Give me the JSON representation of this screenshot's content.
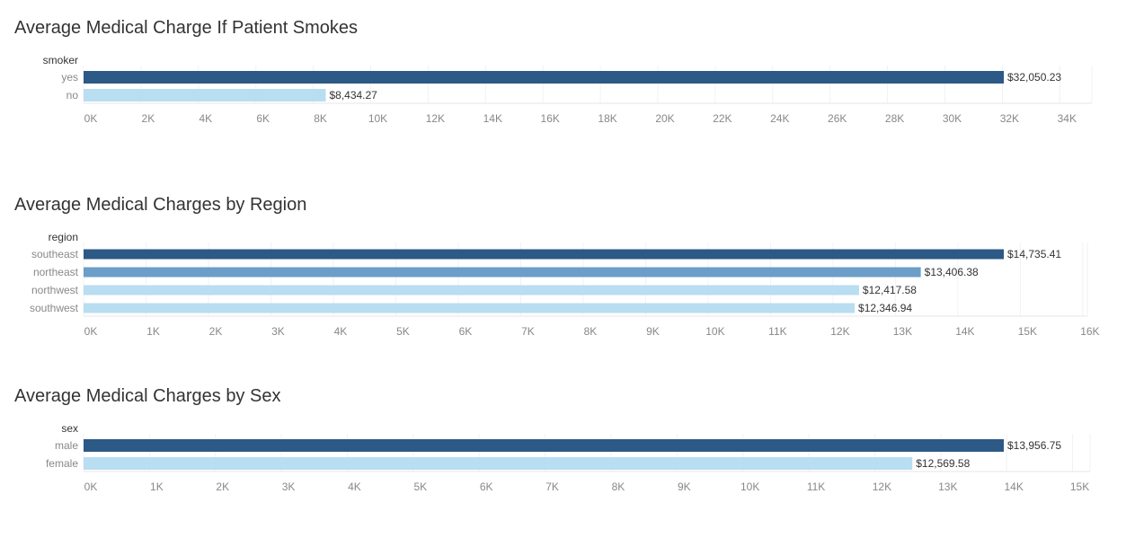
{
  "charts": [
    {
      "title": "Average Medical Charge If Patient Smokes",
      "dimension_label": "smoker"
    },
    {
      "title": "Average Medical Charges by Region",
      "dimension_label": "region"
    },
    {
      "title": "Average Medical Charges by Sex",
      "dimension_label": "sex"
    }
  ],
  "chart_data": [
    {
      "type": "bar",
      "orientation": "horizontal",
      "title": "Average Medical Charge If Patient Smokes",
      "ylabel": "smoker",
      "categories": [
        "yes",
        "no"
      ],
      "values": [
        32050.23,
        8434.27
      ],
      "value_labels": [
        "$32,050.23",
        "$8,434.27"
      ],
      "colors": [
        "#2c5985",
        "#b9ddf1"
      ],
      "xlim": [
        0,
        36000
      ],
      "ticks": [
        0,
        2000,
        4000,
        6000,
        8000,
        10000,
        12000,
        14000,
        16000,
        18000,
        20000,
        22000,
        24000,
        26000,
        28000,
        30000,
        32000,
        34000
      ],
      "tick_labels": [
        "0K",
        "2K",
        "4K",
        "6K",
        "8K",
        "10K",
        "12K",
        "14K",
        "16K",
        "18K",
        "20K",
        "22K",
        "24K",
        "26K",
        "28K",
        "30K",
        "32K",
        "34K"
      ],
      "grid": true
    },
    {
      "type": "bar",
      "orientation": "horizontal",
      "title": "Average Medical Charges by Region",
      "ylabel": "region",
      "categories": [
        "southeast",
        "northeast",
        "northwest",
        "southwest"
      ],
      "values": [
        14735.41,
        13406.38,
        12417.58,
        12346.94
      ],
      "value_labels": [
        "$14,735.41",
        "$13,406.38",
        "$12,417.58",
        "$12,346.94"
      ],
      "colors": [
        "#2c5985",
        "#6b9ec8",
        "#b9ddf1",
        "#b9ddf1"
      ],
      "xlim": [
        0,
        16700
      ],
      "ticks": [
        0,
        1000,
        2000,
        3000,
        4000,
        5000,
        6000,
        7000,
        8000,
        9000,
        10000,
        11000,
        12000,
        13000,
        14000,
        15000,
        16000
      ],
      "tick_labels": [
        "0K",
        "1K",
        "2K",
        "3K",
        "4K",
        "5K",
        "6K",
        "7K",
        "8K",
        "9K",
        "10K",
        "11K",
        "12K",
        "13K",
        "14K",
        "15K",
        "16K"
      ],
      "grid": true
    },
    {
      "type": "bar",
      "orientation": "horizontal",
      "title": "Average Medical Charges by Sex",
      "ylabel": "sex",
      "categories": [
        "male",
        "female"
      ],
      "values": [
        13956.75,
        12569.58
      ],
      "value_labels": [
        "$13,956.75",
        "$12,569.58"
      ],
      "colors": [
        "#2c5985",
        "#b9ddf1"
      ],
      "xlim": [
        0,
        15700
      ],
      "ticks": [
        0,
        1000,
        2000,
        3000,
        4000,
        5000,
        6000,
        7000,
        8000,
        9000,
        10000,
        11000,
        12000,
        13000,
        14000,
        15000
      ],
      "tick_labels": [
        "0K",
        "1K",
        "2K",
        "3K",
        "4K",
        "5K",
        "6K",
        "7K",
        "8K",
        "9K",
        "10K",
        "11K",
        "12K",
        "13K",
        "14K",
        "15K"
      ],
      "grid": true
    }
  ]
}
